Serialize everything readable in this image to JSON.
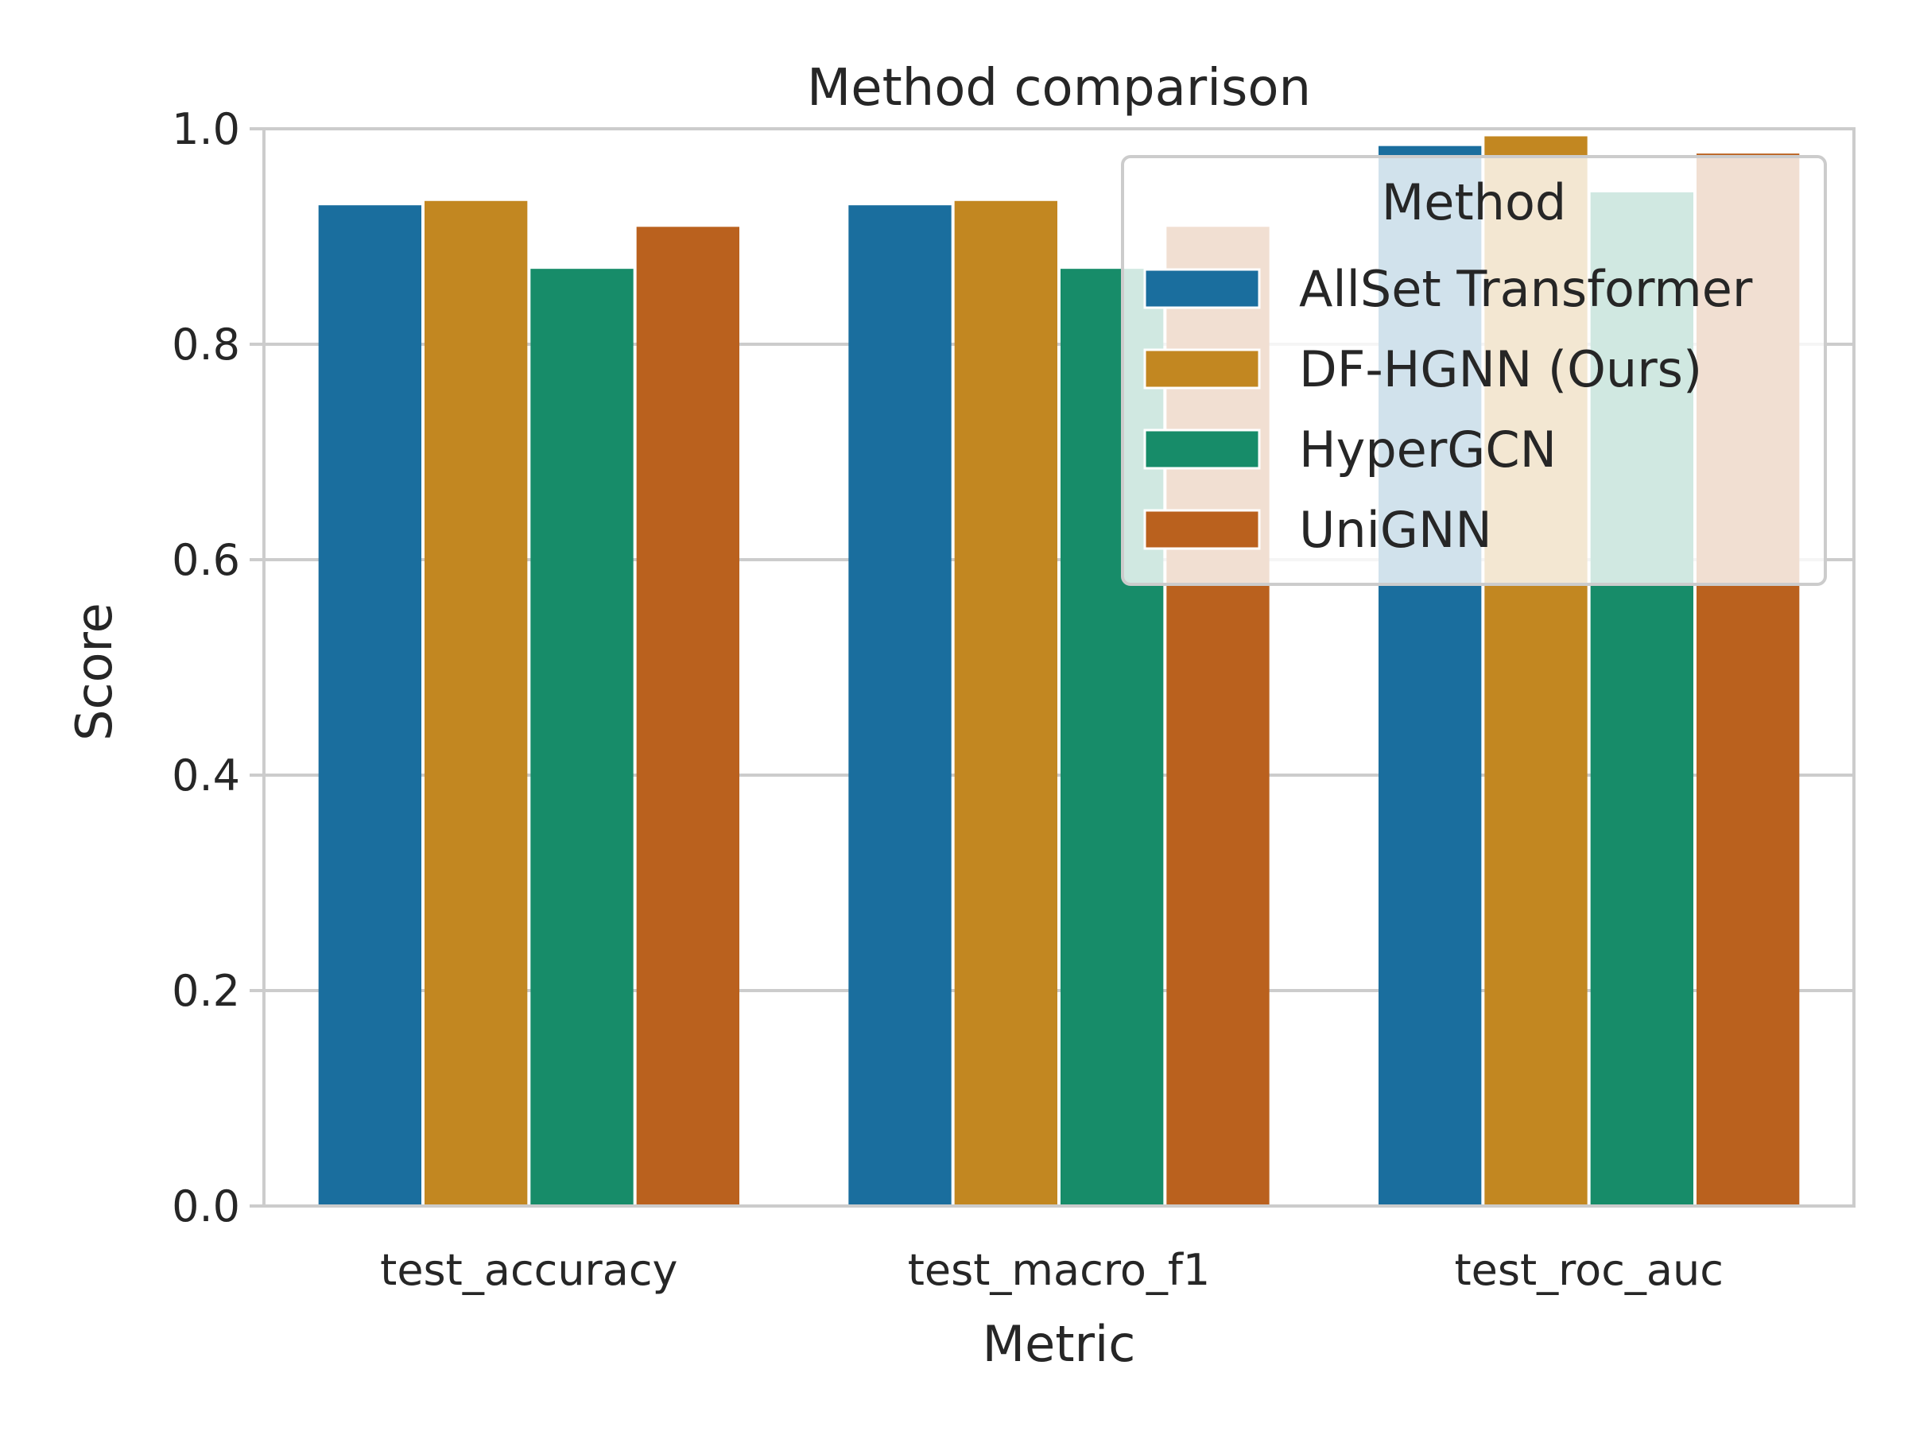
{
  "chart_data": {
    "type": "bar",
    "title": "Method comparison",
    "xlabel": "Metric",
    "ylabel": "Score",
    "ylim": [
      0,
      1.0
    ],
    "yticks": [
      "0.0",
      "0.2",
      "0.4",
      "0.6",
      "0.8",
      "1.0"
    ],
    "grid": true,
    "legend_placement": "top-right",
    "legend_title": "Method",
    "categories": [
      "test_accuracy",
      "test_macro_f1",
      "test_roc_auc"
    ],
    "series": [
      {
        "name": "AllSet Transformer",
        "color": "#1a6e9e",
        "values": [
          0.929,
          0.929,
          0.984
        ]
      },
      {
        "name": "DF-HGNN (Ours)",
        "color": "#c28721",
        "values": [
          0.933,
          0.933,
          0.993
        ]
      },
      {
        "name": "HyperGCN",
        "color": "#178c69",
        "values": [
          0.87,
          0.87,
          0.941
        ]
      },
      {
        "name": "UniGNN",
        "color": "#ba611e",
        "values": [
          0.909,
          0.909,
          0.977
        ]
      }
    ]
  }
}
